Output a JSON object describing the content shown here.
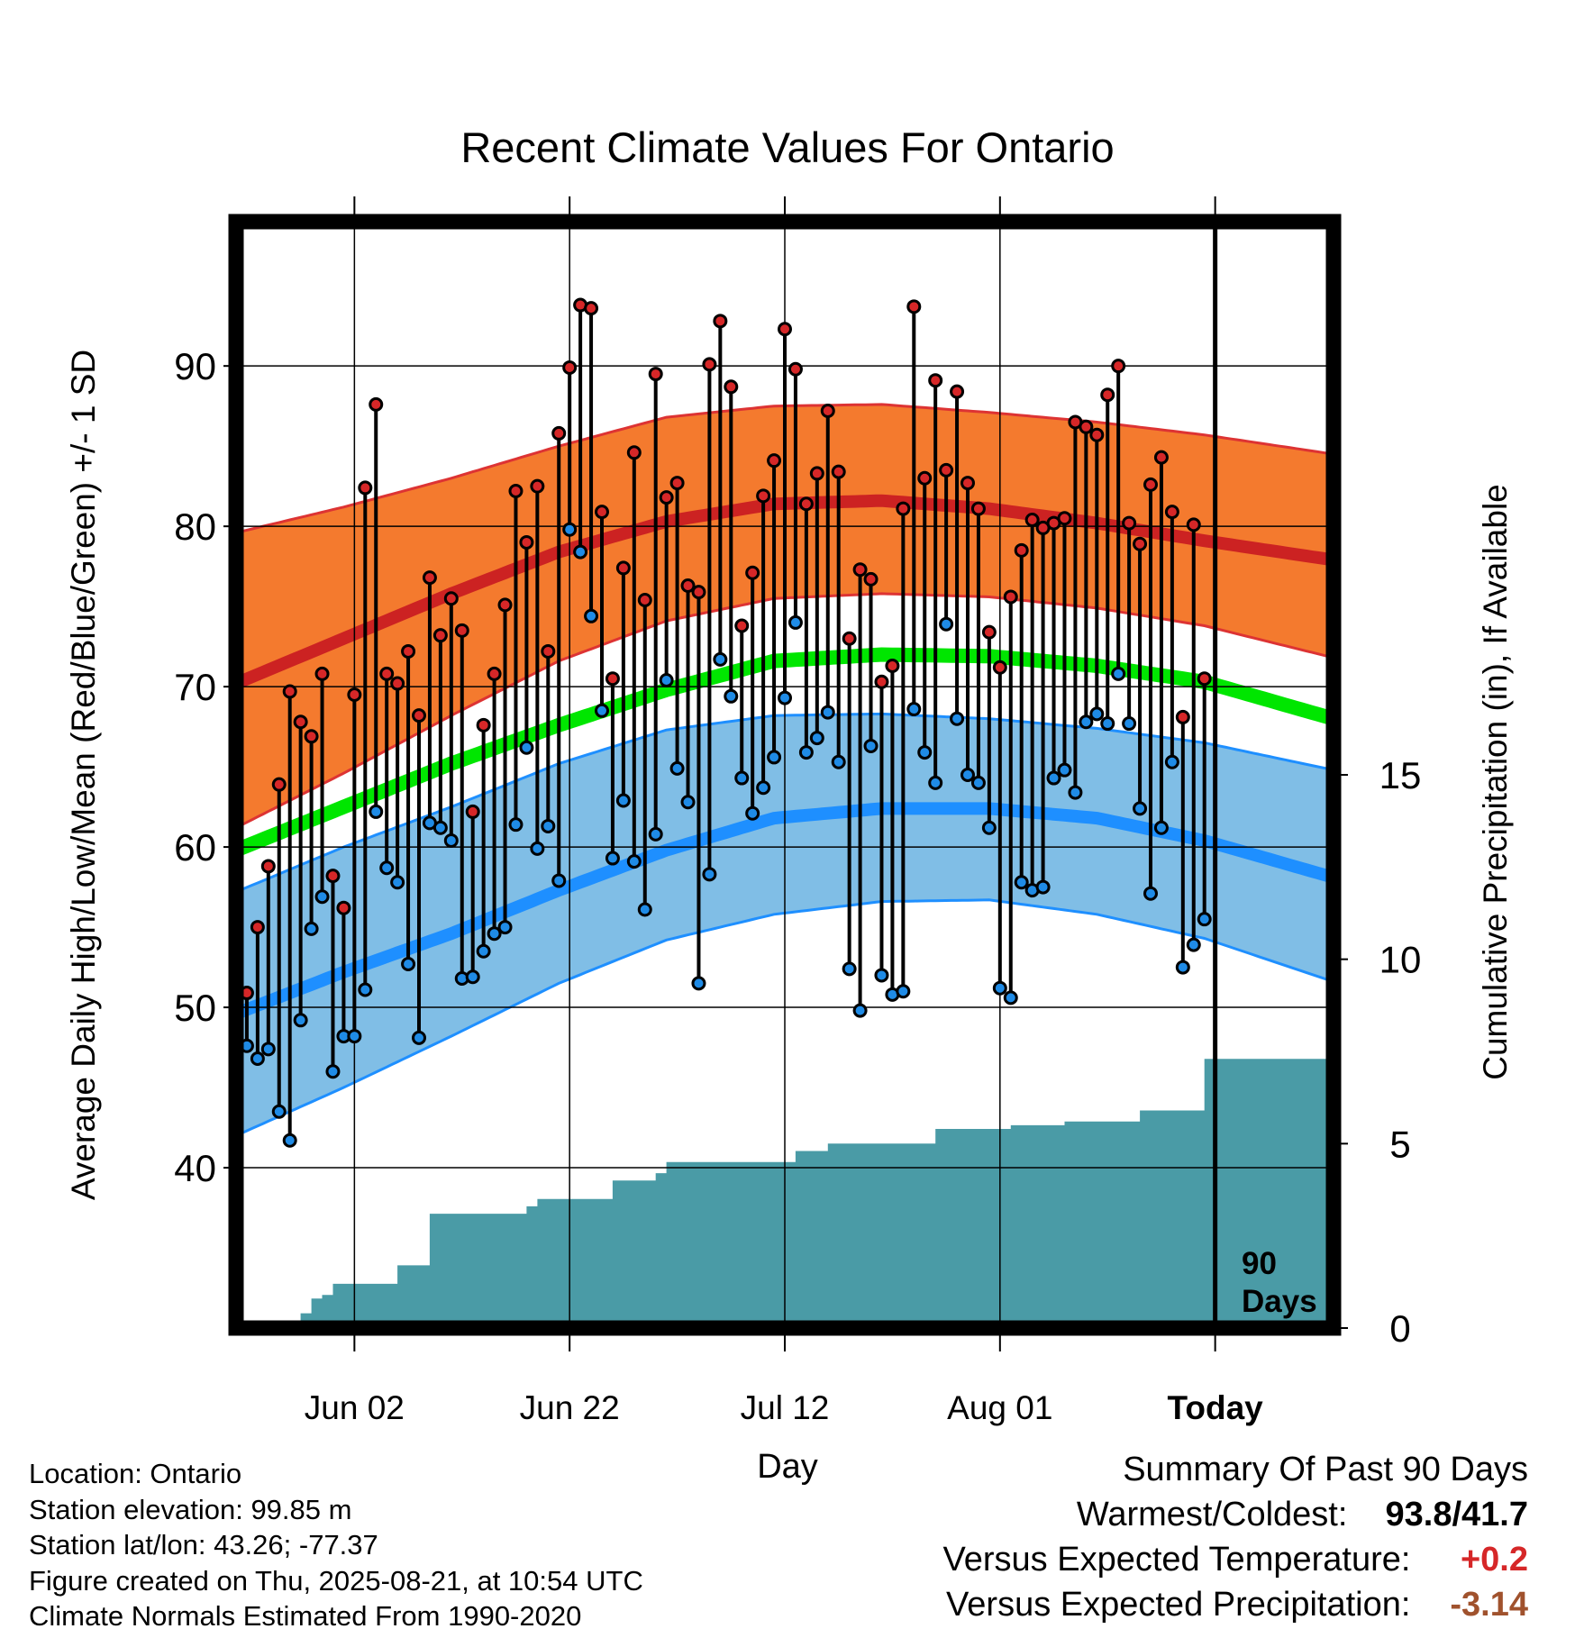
{
  "chart_data": {
    "type": "line",
    "title": "Recent Climate Values For Ontario",
    "xlabel": "Day",
    "ylabel": "Average Daily High/Low/Mean (Red/Blue/Green) +/- 1 SD",
    "y2label": "Cumulative Precipitation (in), If Available",
    "x_ticks": [
      "Jun 02",
      "Jun 22",
      "Jul 12",
      "Aug 01",
      "Today"
    ],
    "x_dates": [
      "2025-05-23",
      "2025-08-21"
    ],
    "x_lim_dates": [
      "2025-05-22",
      "2025-09-01"
    ],
    "ylim": [
      30,
      99
    ],
    "y_ticks": [
      40,
      50,
      60,
      70,
      80,
      90
    ],
    "y2lim": [
      0,
      30
    ],
    "y2_ticks": [
      0,
      5,
      10,
      15
    ],
    "grid": true,
    "today_marker": {
      "date": "2025-08-21",
      "label_line1": "90",
      "label_line2": "Days"
    },
    "daily_high": [
      50.9,
      55.0,
      58.8,
      63.9,
      69.7,
      67.8,
      66.9,
      70.8,
      58.2,
      56.2,
      69.5,
      82.4,
      87.6,
      70.8,
      70.2,
      72.2,
      68.2,
      76.8,
      73.2,
      75.5,
      73.5,
      62.2,
      67.6,
      70.8,
      75.1,
      82.2,
      79.0,
      82.5,
      72.2,
      85.8,
      89.9,
      93.8,
      93.6,
      80.9,
      70.5,
      77.4,
      84.6,
      75.4,
      89.5,
      81.8,
      82.7,
      76.3,
      75.9,
      90.1,
      92.8,
      88.7,
      73.8,
      77.1,
      81.9,
      84.1,
      92.3,
      89.8,
      81.4,
      83.3,
      87.2,
      83.4,
      73.0,
      77.3,
      76.7,
      70.3,
      71.3,
      81.1,
      93.7,
      83.0,
      89.1,
      83.5,
      88.4,
      82.7,
      81.1,
      73.4,
      71.2,
      75.6,
      78.5,
      80.4,
      79.9,
      80.2,
      80.5,
      86.5,
      86.2,
      85.7,
      88.2,
      90.0,
      80.2,
      78.9,
      82.6,
      84.3,
      80.9,
      68.1,
      80.1,
      70.5
    ],
    "daily_low": [
      47.6,
      46.8,
      47.4,
      43.5,
      41.7,
      49.2,
      54.9,
      56.9,
      46.0,
      48.2,
      48.2,
      51.1,
      62.2,
      58.7,
      57.8,
      52.7,
      48.1,
      61.5,
      61.2,
      60.4,
      51.8,
      51.9,
      53.5,
      54.6,
      55.0,
      61.4,
      66.2,
      59.9,
      61.3,
      57.9,
      79.8,
      78.4,
      74.4,
      68.5,
      59.3,
      62.9,
      59.1,
      56.1,
      60.8,
      70.4,
      64.9,
      62.8,
      51.5,
      58.3,
      71.7,
      69.4,
      64.3,
      62.1,
      63.7,
      65.6,
      69.3,
      74.0,
      65.9,
      66.8,
      68.4,
      65.3,
      52.4,
      49.8,
      66.3,
      52.0,
      50.8,
      51.0,
      68.6,
      65.9,
      64.0,
      73.9,
      68.0,
      64.5,
      64.0,
      61.2,
      51.2,
      50.6,
      57.8,
      57.3,
      57.5,
      64.3,
      64.8,
      63.4,
      67.8,
      68.3,
      67.7,
      70.8,
      67.7,
      62.4,
      57.1,
      61.2,
      65.3,
      52.5,
      53.9,
      55.5
    ],
    "normals_doy": [
      142,
      152,
      162,
      172,
      182,
      192,
      202,
      212,
      222,
      232,
      244
    ],
    "normal_high": [
      70.2,
      73.0,
      75.8,
      78.4,
      80.3,
      81.4,
      81.6,
      81.1,
      80.2,
      79.1,
      77.9
    ],
    "normal_high_sd_upper": [
      79.6,
      81.2,
      83.0,
      85.0,
      86.8,
      87.5,
      87.6,
      87.1,
      86.5,
      85.7,
      84.5
    ],
    "normal_high_sd_lower": [
      61.2,
      64.6,
      68.2,
      71.6,
      74.1,
      75.5,
      75.8,
      75.6,
      74.9,
      73.8,
      71.8
    ],
    "normal_mean": [
      59.8,
      62.5,
      65.2,
      67.6,
      69.8,
      71.6,
      72.0,
      71.9,
      71.3,
      70.3,
      68.0
    ],
    "normal_low": [
      49.6,
      52.2,
      54.6,
      57.3,
      59.8,
      61.8,
      62.4,
      62.4,
      61.8,
      60.4,
      58.1
    ],
    "normal_low_sd_upper": [
      57.2,
      60.0,
      62.5,
      65.2,
      67.3,
      68.2,
      68.3,
      68.0,
      67.4,
      66.5,
      64.8
    ],
    "normal_low_sd_lower": [
      42.0,
      45.0,
      48.2,
      51.5,
      54.2,
      55.8,
      56.6,
      56.7,
      55.8,
      54.3,
      51.6
    ],
    "precip_cum": [
      0.0,
      0.0,
      0.0,
      0.0,
      0.0,
      0.4,
      0.8,
      0.9,
      1.2,
      1.2,
      1.2,
      1.2,
      1.2,
      1.2,
      1.7,
      1.7,
      1.7,
      3.1,
      3.1,
      3.1,
      3.1,
      3.1,
      3.1,
      3.1,
      3.1,
      3.1,
      3.3,
      3.5,
      3.5,
      3.5,
      3.5,
      3.5,
      3.5,
      3.5,
      4.0,
      4.0,
      4.0,
      4.0,
      4.2,
      4.5,
      4.5,
      4.5,
      4.5,
      4.5,
      4.5,
      4.5,
      4.5,
      4.5,
      4.5,
      4.5,
      4.5,
      4.8,
      4.8,
      4.8,
      5.0,
      5.0,
      5.0,
      5.0,
      5.0,
      5.0,
      5.0,
      5.0,
      5.0,
      5.0,
      5.4,
      5.4,
      5.4,
      5.4,
      5.4,
      5.4,
      5.4,
      5.5,
      5.5,
      5.5,
      5.5,
      5.5,
      5.6,
      5.6,
      5.6,
      5.6,
      5.6,
      5.6,
      5.6,
      5.9,
      5.9,
      5.9,
      5.9,
      5.9,
      5.9,
      7.3,
      7.3,
      7.3,
      7.3,
      7.3,
      7.3,
      7.3,
      7.3,
      7.3,
      7.3,
      7.3,
      7.3,
      7.3
    ],
    "colors": {
      "high_band": "#f47a2e",
      "high_line": "#cc2222",
      "high_edge": "#dd3333",
      "mean_line": "#00e600",
      "low_band": "#80bee6",
      "low_line": "#1e8fff",
      "low_edge": "#1e8fff",
      "precip_fill": "#4a9ba6",
      "high_dot": "#d62728",
      "low_dot": "#1f8be6"
    }
  },
  "info": {
    "location": "Location: Ontario",
    "elevation": "Station elevation: 99.85 m",
    "latlon": "Station lat/lon: 43.26; -77.37",
    "created": "Figure created on Thu, 2025-08-21, at 10:54 UTC",
    "normals": "Climate Normals Estimated From 1990-2020"
  },
  "summary": {
    "heading": "Summary Of Past 90 Days",
    "warmest_label": "Warmest/Coldest:",
    "warmest_value": "93.8/41.7",
    "temp_label": "Versus Expected Temperature:",
    "temp_value": "+0.2",
    "temp_color": "#d62728",
    "precip_label": "Versus Expected Precipitation:",
    "precip_value": "-3.14",
    "precip_color": "#a0522d"
  }
}
